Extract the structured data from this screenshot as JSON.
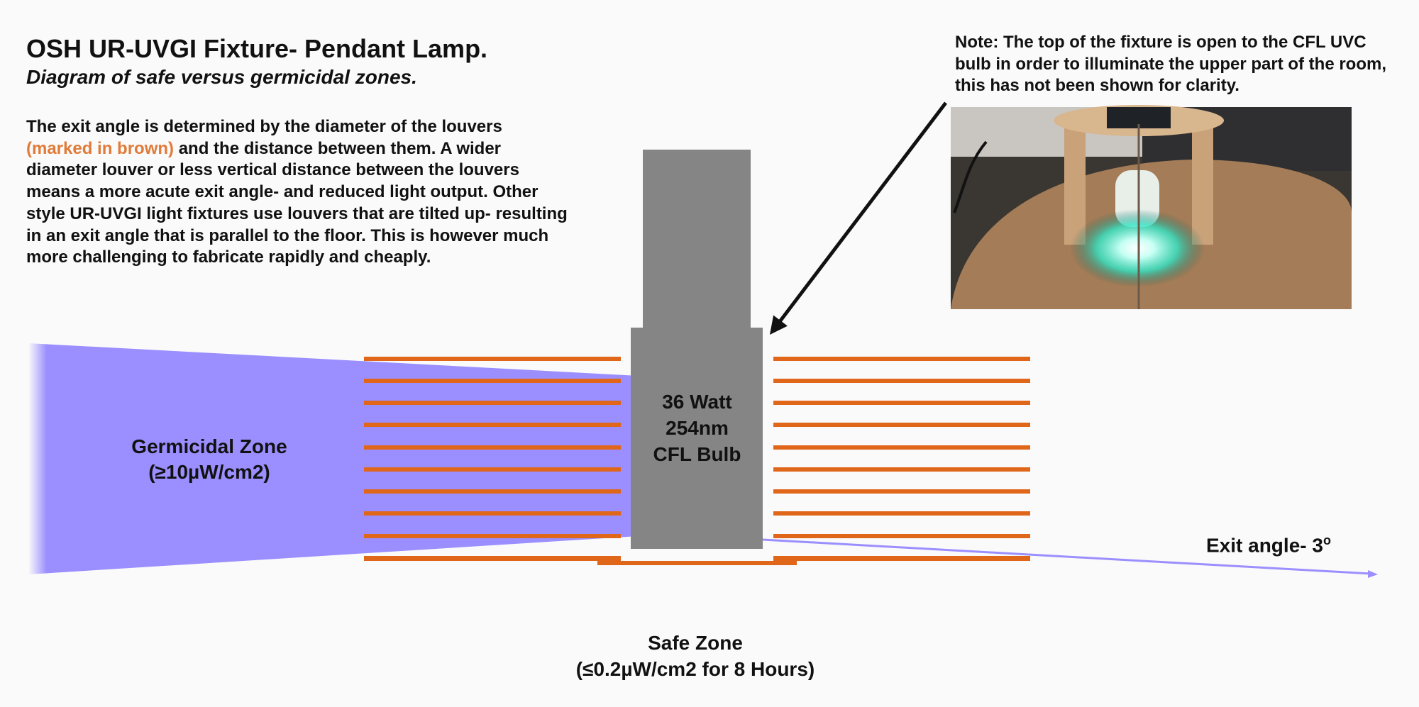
{
  "header": {
    "title": "OSH UR-UVGI Fixture- Pendant Lamp.",
    "subtitle": "Diagram of safe versus germicidal zones."
  },
  "description": {
    "part1": "The exit angle is determined by the diameter of the louvers ",
    "highlight": "(marked in brown)",
    "part2": " and the distance between them. A wider diameter louver or less vertical distance between the louvers means a more acute exit angle- and reduced light output. Other style UR-UVGI light fixtures use louvers that are tilted up- resulting in an exit angle that is parallel to the floor. This is however much more challenging to fabricate rapidly and cheaply."
  },
  "note": "Note: The top of the fixture is open to the CFL UVC bulb in order to illuminate the upper part of the room, this has not been shown for clarity.",
  "zones": {
    "germicidal_line1": "Germicidal Zone",
    "germicidal_line2": "(≥10µW/cm2)",
    "safe_line1": "Safe Zone",
    "safe_line2": "(≤0.2µW/cm2 for 8 Hours)"
  },
  "bulb": {
    "line1": "36 Watt",
    "line2": "254nm",
    "line3": "CFL Bulb"
  },
  "exit_angle": {
    "label": "Exit angle- 3",
    "unit": "o"
  },
  "colors": {
    "louver": "#e0661a",
    "germicidal_zone": "#9b8fff",
    "bulb_body": "#858585",
    "text": "#111111",
    "highlight": "#e07b39"
  }
}
